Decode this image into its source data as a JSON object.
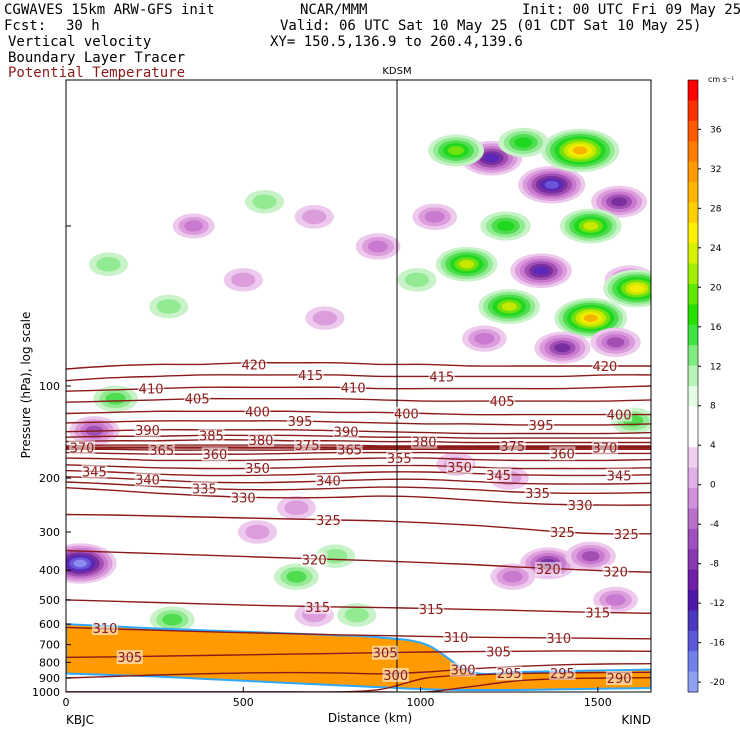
{
  "header": {
    "model": "CGWAVES 15km ARW-GFS init",
    "fcst_label": "Fcst:",
    "fcst_value": "30 h",
    "org": "NCAR/MMM",
    "init": "Init: 00 UTC Fri 09 May 25",
    "valid": "Valid: 06 UTC Sat 10 May 25 (01 CDT Sat 10 May 25)",
    "xy": "XY= 150.5,136.9 to 260.4,139.6",
    "fields": [
      "Vertical velocity",
      "Boundary Layer Tracer",
      "Potential Temperature"
    ]
  },
  "colors": {
    "theta": "#8b1a1a",
    "pbl_tracer": "#ff9a00",
    "neg_w": [
      "#eec9ee",
      "#dc9ddc",
      "#c97ad0",
      "#a24fb4",
      "#7a2fa0",
      "#5a28b8",
      "#6a55d8",
      "#8a8af0"
    ],
    "pos_w": [
      "#c8f2c8",
      "#92ea92",
      "#4fdc4f",
      "#20d820",
      "#70e010",
      "#c8e800",
      "#f2ec00",
      "#f6b400"
    ]
  },
  "chart_data": {
    "type": "heatmap",
    "title": "KDSM",
    "xlabel": "Distance (km)",
    "ylabel": "Pressure (hPa), log scale",
    "xlim": [
      0,
      1650
    ],
    "ylim": [
      1000,
      10
    ],
    "yscale": "log",
    "x_ticks": [
      "0",
      "500",
      "1000",
      "1500"
    ],
    "x_endpoints": [
      "KBJC",
      "KIND"
    ],
    "y_ticks": [
      "100",
      "200",
      "300",
      "400",
      "500",
      "600",
      "700",
      "800",
      "900",
      "1000"
    ],
    "station_marker_km": 935,
    "colorbar": {
      "unit": "cm s⁻¹",
      "labels": [
        "36",
        "32",
        "28",
        "24",
        "20",
        "16",
        "12",
        "8",
        "4",
        "0",
        "-4",
        "-8",
        "-12",
        "-16",
        "-20"
      ],
      "colors": [
        "#ff0000",
        "#ff3000",
        "#ff5a00",
        "#ff7c00",
        "#ff9a00",
        "#ffb400",
        "#ffd000",
        "#fff000",
        "#d6f200",
        "#a0f000",
        "#60e800",
        "#28e000",
        "#40e440",
        "#80ec80",
        "#b8f4b8",
        "#e4fce4",
        "#ffffff",
        "#ffffff",
        "#f0d0f0",
        "#e0b0e8",
        "#d090dc",
        "#b870cc",
        "#a050bc",
        "#8838b0",
        "#7020a8",
        "#5018a8",
        "#4a38c0",
        "#5a58d8",
        "#7080e8",
        "#90a0f4"
      ]
    },
    "theta_contours": [
      {
        "value": 420,
        "p": [
          88,
          86,
          85,
          85,
          84,
          84,
          84,
          85,
          85,
          86,
          86,
          86,
          86,
          86
        ]
      },
      {
        "value": 415,
        "p": [
          96,
          94,
          93,
          92,
          92,
          92,
          92,
          93,
          93,
          93,
          93,
          93,
          92,
          92
        ]
      },
      {
        "value": 410,
        "p": [
          104,
          103,
          102,
          101,
          101,
          101,
          101,
          102,
          102,
          102,
          102,
          102,
          101,
          100
        ]
      },
      {
        "value": 405,
        "p": [
          113,
          112,
          111,
          110,
          110,
          110,
          110,
          111,
          112,
          112,
          112,
          112,
          112,
          111
        ]
      },
      {
        "value": 400,
        "p": [
          123,
          122,
          121,
          121,
          121,
          121,
          122,
          122,
          123,
          124,
          124,
          124,
          124,
          124
        ]
      },
      {
        "value": 395,
        "p": [
          132,
          131,
          130,
          130,
          130,
          130,
          131,
          132,
          133,
          133,
          134,
          134,
          134,
          133
        ]
      },
      {
        "value": 390,
        "p": [
          141,
          140,
          139,
          139,
          139,
          139,
          140,
          141,
          142,
          143,
          143,
          143,
          143,
          142
        ]
      },
      {
        "value": 385,
        "p": [
          147,
          146,
          146,
          145,
          145,
          145,
          146,
          147,
          147,
          148,
          148,
          148,
          148,
          148
        ]
      },
      {
        "value": 380,
        "p": [
          152,
          151,
          151,
          150,
          150,
          151,
          151,
          152,
          152,
          153,
          153,
          153,
          153,
          153
        ]
      },
      {
        "value": 375,
        "p": [
          157,
          156,
          156,
          156,
          156,
          156,
          156,
          157,
          157,
          157,
          157,
          157,
          157,
          157
        ]
      },
      {
        "value": 370,
        "p": [
          159,
          159,
          159,
          159,
          159,
          159,
          159,
          159,
          159,
          159,
          159,
          159,
          159,
          159
        ]
      },
      {
        "value": 365,
        "p": [
          161,
          161,
          162,
          162,
          162,
          162,
          161,
          161,
          161,
          161,
          161,
          161,
          161,
          161
        ]
      },
      {
        "value": 360,
        "p": [
          165,
          166,
          167,
          167,
          167,
          166,
          165,
          165,
          165,
          166,
          166,
          166,
          166,
          166
        ]
      },
      {
        "value": 355,
        "p": [
          172,
          173,
          175,
          175,
          175,
          174,
          173,
          172,
          172,
          174,
          175,
          175,
          175,
          174
        ]
      },
      {
        "value": 350,
        "p": [
          181,
          183,
          185,
          186,
          186,
          185,
          183,
          182,
          182,
          184,
          186,
          186,
          186,
          185
        ]
      },
      {
        "value": 345,
        "p": [
          189,
          191,
          194,
          196,
          196,
          195,
          193,
          191,
          191,
          193,
          195,
          196,
          196,
          195
        ]
      },
      {
        "value": 340,
        "p": [
          198,
          200,
          203,
          206,
          207,
          206,
          204,
          202,
          202,
          205,
          208,
          209,
          209,
          208
        ]
      },
      {
        "value": 335,
        "p": [
          206,
          209,
          213,
          216,
          218,
          218,
          216,
          214,
          215,
          218,
          222,
          224,
          224,
          223
        ]
      },
      {
        "value": 330,
        "p": [
          215,
          219,
          224,
          228,
          231,
          232,
          231,
          229,
          231,
          236,
          241,
          244,
          245,
          245
        ]
      },
      {
        "value": 325,
        "p": [
          263,
          264,
          266,
          268,
          270,
          272,
          274,
          276,
          280,
          285,
          292,
          300,
          304,
          304
        ]
      },
      {
        "value": 320,
        "p": [
          345,
          349,
          353,
          357,
          361,
          365,
          369,
          373,
          378,
          383,
          390,
          396,
          402,
          406
        ]
      },
      {
        "value": 315,
        "p": [
          500,
          505,
          510,
          515,
          520,
          524,
          527,
          530,
          533,
          537,
          541,
          546,
          550,
          553
        ]
      },
      {
        "value": 310,
        "p": [
          615,
          622,
          628,
          635,
          640,
          645,
          650,
          654,
          658,
          662,
          664,
          666,
          668,
          670
        ]
      },
      {
        "value": 305,
        "p": [
          770,
          768,
          764,
          760,
          756,
          752,
          748,
          744,
          740,
          738,
          736,
          734,
          735,
          736
        ]
      },
      {
        "value": 300,
        "p": [
          900,
          890,
          880,
          872,
          866,
          864,
          866,
          872,
          860,
          840,
          825,
          815,
          810,
          808
        ]
      },
      {
        "value": 295,
        "p": [
          1000,
          1000,
          1000,
          1000,
          1000,
          1000,
          1000,
          980,
          900,
          880,
          870,
          866,
          864,
          862
        ]
      },
      {
        "value": 290,
        "p": [
          1000,
          1000,
          1000,
          1000,
          1000,
          1000,
          1000,
          1000,
          1000,
          960,
          920,
          905,
          900,
          898
        ]
      }
    ],
    "contour_x_km": [
      0,
      127,
      254,
      381,
      508,
      635,
      762,
      889,
      1016,
      1143,
      1270,
      1397,
      1524,
      1650
    ],
    "contour_labels": [
      {
        "value": "420",
        "x": 530,
        "p": 85
      },
      {
        "value": "420",
        "x": 1520,
        "p": 86
      },
      {
        "value": "415",
        "x": 690,
        "p": 92
      },
      {
        "value": "415",
        "x": 1060,
        "p": 93
      },
      {
        "value": "410",
        "x": 240,
        "p": 102
      },
      {
        "value": "410",
        "x": 810,
        "p": 101
      },
      {
        "value": "405",
        "x": 370,
        "p": 110
      },
      {
        "value": "405",
        "x": 1230,
        "p": 112
      },
      {
        "value": "400",
        "x": 540,
        "p": 121
      },
      {
        "value": "400",
        "x": 960,
        "p": 123
      },
      {
        "value": "400",
        "x": 1560,
        "p": 124
      },
      {
        "value": "395",
        "x": 660,
        "p": 130
      },
      {
        "value": "395",
        "x": 1340,
        "p": 134
      },
      {
        "value": "390",
        "x": 230,
        "p": 139
      },
      {
        "value": "390",
        "x": 790,
        "p": 141
      },
      {
        "value": "385",
        "x": 410,
        "p": 145
      },
      {
        "value": "380",
        "x": 550,
        "p": 150
      },
      {
        "value": "380",
        "x": 1010,
        "p": 152
      },
      {
        "value": "375",
        "x": 680,
        "p": 156
      },
      {
        "value": "375",
        "x": 1260,
        "p": 157
      },
      {
        "value": "370",
        "x": 45,
        "p": 159
      },
      {
        "value": "370",
        "x": 1520,
        "p": 159
      },
      {
        "value": "365",
        "x": 270,
        "p": 162
      },
      {
        "value": "365",
        "x": 800,
        "p": 161
      },
      {
        "value": "360",
        "x": 420,
        "p": 167
      },
      {
        "value": "360",
        "x": 1400,
        "p": 166
      },
      {
        "value": "355",
        "x": 940,
        "p": 172
      },
      {
        "value": "350",
        "x": 540,
        "p": 185
      },
      {
        "value": "350",
        "x": 1110,
        "p": 184
      },
      {
        "value": "345",
        "x": 80,
        "p": 190
      },
      {
        "value": "345",
        "x": 1220,
        "p": 195
      },
      {
        "value": "345",
        "x": 1560,
        "p": 196
      },
      {
        "value": "340",
        "x": 230,
        "p": 202
      },
      {
        "value": "340",
        "x": 740,
        "p": 204
      },
      {
        "value": "335",
        "x": 390,
        "p": 216
      },
      {
        "value": "335",
        "x": 1330,
        "p": 224
      },
      {
        "value": "330",
        "x": 500,
        "p": 231
      },
      {
        "value": "330",
        "x": 1450,
        "p": 245
      },
      {
        "value": "325",
        "x": 740,
        "p": 274
      },
      {
        "value": "325",
        "x": 1400,
        "p": 300
      },
      {
        "value": "325",
        "x": 1580,
        "p": 304
      },
      {
        "value": "320",
        "x": 700,
        "p": 369
      },
      {
        "value": "320",
        "x": 1360,
        "p": 396
      },
      {
        "value": "320",
        "x": 1550,
        "p": 404
      },
      {
        "value": "315",
        "x": 710,
        "p": 527
      },
      {
        "value": "315",
        "x": 1030,
        "p": 535
      },
      {
        "value": "315",
        "x": 1500,
        "p": 550
      },
      {
        "value": "310",
        "x": 110,
        "p": 618
      },
      {
        "value": "310",
        "x": 1100,
        "p": 660
      },
      {
        "value": "310",
        "x": 1390,
        "p": 666
      },
      {
        "value": "305",
        "x": 180,
        "p": 769
      },
      {
        "value": "305",
        "x": 900,
        "p": 744
      },
      {
        "value": "305",
        "x": 1220,
        "p": 737
      },
      {
        "value": "300",
        "x": 1120,
        "p": 845
      },
      {
        "value": "300",
        "x": 930,
        "p": 880
      },
      {
        "value": "295",
        "x": 1250,
        "p": 868
      },
      {
        "value": "295",
        "x": 1400,
        "p": 866
      },
      {
        "value": "290",
        "x": 1560,
        "p": 900
      }
    ],
    "pbl_tracer_top_p": [
      600,
      610,
      620,
      628,
      636,
      644,
      652,
      664,
      700,
      860,
      860,
      855,
      850,
      845
    ],
    "pbl_tracer_bottom_p": [
      870,
      880,
      890,
      905,
      920,
      935,
      950,
      965,
      980,
      985,
      985,
      980,
      975,
      970
    ],
    "w_features": [
      {
        "x": 1200,
        "p": 18,
        "w": -12
      },
      {
        "x": 1370,
        "p": 22,
        "w": -14
      },
      {
        "x": 1560,
        "p": 25,
        "w": -10
      },
      {
        "x": 1100,
        "p": 17,
        "w": 10
      },
      {
        "x": 1290,
        "p": 16,
        "w": 8
      },
      {
        "x": 1450,
        "p": 17,
        "w": 18
      },
      {
        "x": 1040,
        "p": 28,
        "w": -6
      },
      {
        "x": 1240,
        "p": 30,
        "w": 8
      },
      {
        "x": 1480,
        "p": 30,
        "w": 12
      },
      {
        "x": 1130,
        "p": 40,
        "w": 12
      },
      {
        "x": 1340,
        "p": 42,
        "w": -12
      },
      {
        "x": 1590,
        "p": 45,
        "w": -8
      },
      {
        "x": 1250,
        "p": 55,
        "w": 12
      },
      {
        "x": 1480,
        "p": 60,
        "w": 16
      },
      {
        "x": 1610,
        "p": 48,
        "w": 14
      },
      {
        "x": 1180,
        "p": 70,
        "w": -6
      },
      {
        "x": 1400,
        "p": 75,
        "w": -10
      },
      {
        "x": 1550,
        "p": 72,
        "w": -8
      },
      {
        "x": 360,
        "p": 30,
        "w": -5
      },
      {
        "x": 700,
        "p": 28,
        "w": -4
      },
      {
        "x": 880,
        "p": 35,
        "w": -6
      },
      {
        "x": 120,
        "p": 40,
        "w": 4
      },
      {
        "x": 500,
        "p": 45,
        "w": -4
      },
      {
        "x": 290,
        "p": 55,
        "w": 4
      },
      {
        "x": 730,
        "p": 60,
        "w": -4
      },
      {
        "x": 560,
        "p": 25,
        "w": 4
      },
      {
        "x": 990,
        "p": 45,
        "w": 4
      },
      {
        "x": 80,
        "p": 140,
        "w": -8
      },
      {
        "x": 140,
        "p": 110,
        "w": 6
      },
      {
        "x": 1250,
        "p": 200,
        "w": -4
      },
      {
        "x": 1360,
        "p": 380,
        "w": -10
      },
      {
        "x": 1260,
        "p": 420,
        "w": -6
      },
      {
        "x": 1480,
        "p": 360,
        "w": -8
      },
      {
        "x": 1550,
        "p": 500,
        "w": -6
      },
      {
        "x": 760,
        "p": 360,
        "w": 4
      },
      {
        "x": 650,
        "p": 420,
        "w": 6
      },
      {
        "x": 820,
        "p": 560,
        "w": 4
      },
      {
        "x": 540,
        "p": 300,
        "w": -4
      },
      {
        "x": 650,
        "p": 250,
        "w": -4
      },
      {
        "x": 300,
        "p": 580,
        "w": 6
      },
      {
        "x": 700,
        "p": 560,
        "w": -4
      },
      {
        "x": 40,
        "p": 380,
        "w": -16
      },
      {
        "x": 1600,
        "p": 130,
        "w": 6
      },
      {
        "x": 1100,
        "p": 180,
        "w": -4
      }
    ]
  }
}
